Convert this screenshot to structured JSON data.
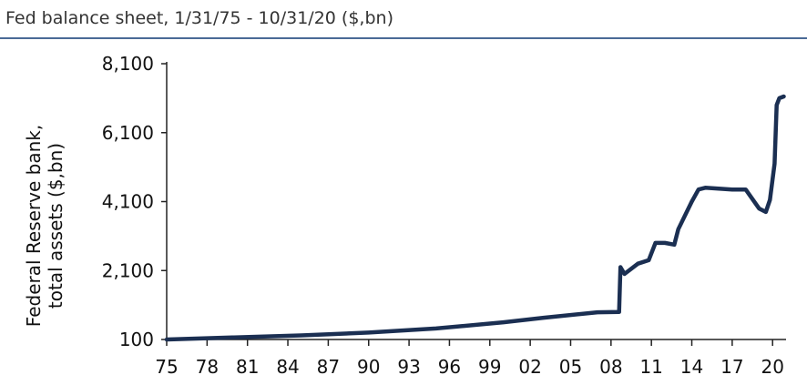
{
  "chart_data": {
    "type": "line",
    "title": "Fed balance sheet, 1/31/75 - 10/31/20 ($,bn)",
    "y_label": [
      "Federal Reserve bank,",
      "total assets ($,bn)"
    ],
    "xlim": [
      1975,
      2021
    ],
    "xticks": [
      {
        "value": 1975,
        "label": "75"
      },
      {
        "value": 1978,
        "label": "78"
      },
      {
        "value": 1981,
        "label": "81"
      },
      {
        "value": 1984,
        "label": "84"
      },
      {
        "value": 1987,
        "label": "87"
      },
      {
        "value": 1990,
        "label": "90"
      },
      {
        "value": 1993,
        "label": "93"
      },
      {
        "value": 1996,
        "label": "96"
      },
      {
        "value": 1999,
        "label": "99"
      },
      {
        "value": 2002,
        "label": "02"
      },
      {
        "value": 2005,
        "label": "05"
      },
      {
        "value": 2008,
        "label": "08"
      },
      {
        "value": 2011,
        "label": "11"
      },
      {
        "value": 2014,
        "label": "14"
      },
      {
        "value": 2017,
        "label": "17"
      },
      {
        "value": 2020,
        "label": "20"
      }
    ],
    "ylim": [
      100,
      8100
    ],
    "yticks": [
      100,
      {
        "value": 2100,
        "label": "2,100"
      },
      {
        "value": 4100,
        "label": "4,100"
      },
      {
        "value": 6100,
        "label": "6,100"
      },
      {
        "value": 8100,
        "label": "8,100"
      }
    ],
    "grid": false,
    "series": [
      {
        "color": "#1b2f52",
        "x": [
          1975,
          1980,
          1985,
          1990,
          1995,
          2000,
          2003,
          2007,
          2008.6,
          2008.7,
          2009,
          2010,
          2010.8,
          2011.3,
          2012,
          2012.7,
          2013,
          2014,
          2014.5,
          2015,
          2017,
          2018,
          2019,
          2019.5,
          2019.8,
          2020.15,
          2020.3,
          2020.5,
          2020.83
        ],
        "values": [
          100,
          160,
          220,
          300,
          420,
          600,
          730,
          890,
          900,
          2200,
          2000,
          2300,
          2400,
          2900,
          2900,
          2850,
          3300,
          4100,
          4450,
          4500,
          4450,
          4450,
          3900,
          3800,
          4150,
          5200,
          6900,
          7100,
          7150
        ]
      }
    ]
  }
}
